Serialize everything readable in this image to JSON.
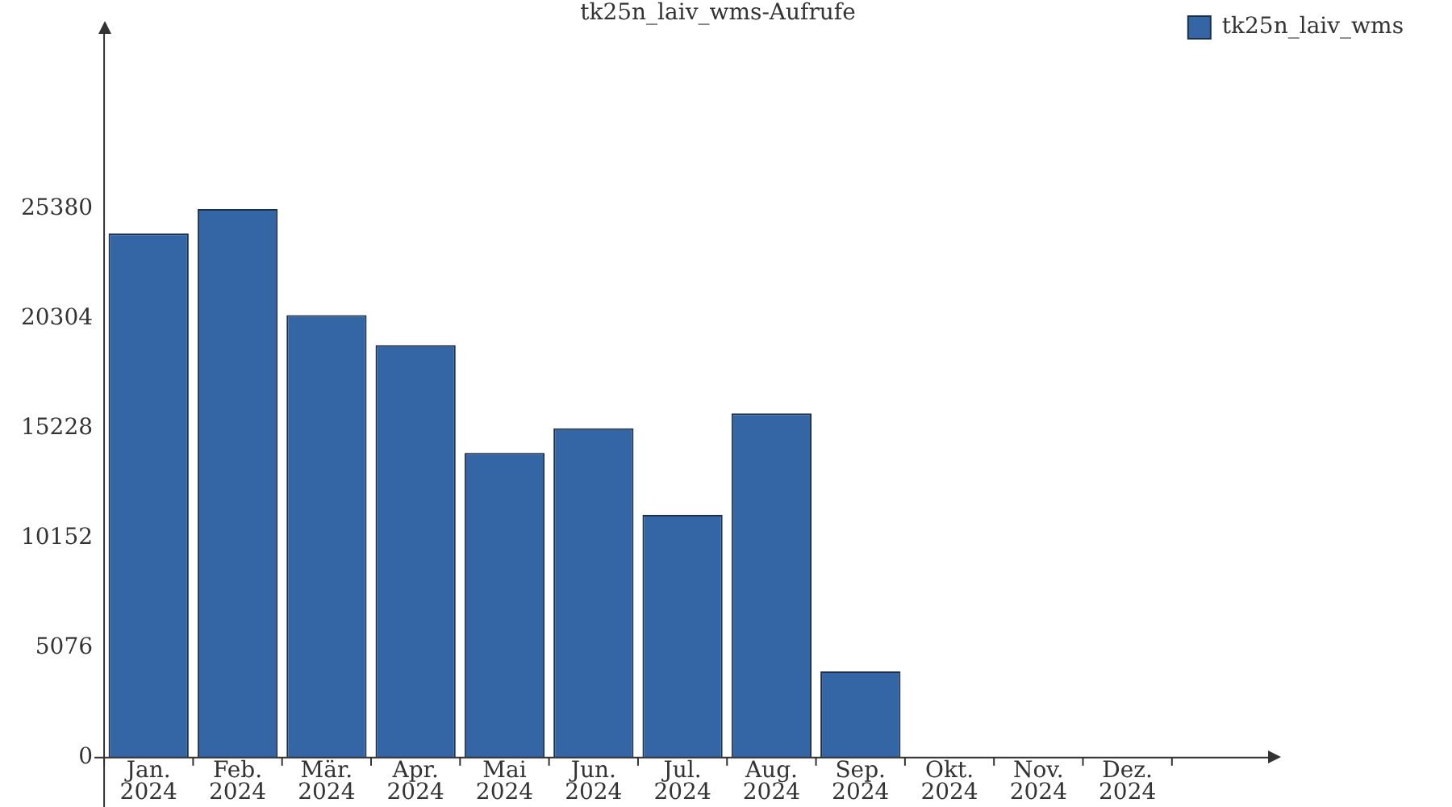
{
  "chart_data": {
    "type": "bar",
    "title": "tk25n_laiv_wms-Aufrufe",
    "categories": [
      "Jan. 2024",
      "Feb. 2024",
      "Mär. 2024",
      "Apr. 2024",
      "Mai 2024",
      "Jun. 2024",
      "Jul. 2024",
      "Aug. 2024",
      "Sep. 2024",
      "Okt. 2024",
      "Nov. 2024",
      "Dez. 2024"
    ],
    "series": [
      {
        "name": "tk25n_laiv_wms",
        "color": "#3465a4",
        "values": [
          24250,
          25380,
          20470,
          19080,
          14100,
          15240,
          11230,
          15930,
          3990,
          0,
          0,
          0
        ]
      }
    ],
    "ylim": [
      0,
      33500
    ],
    "yticks": [
      0,
      5076,
      10152,
      15228,
      20304,
      25380
    ],
    "grid": false,
    "legend": "top right"
  }
}
